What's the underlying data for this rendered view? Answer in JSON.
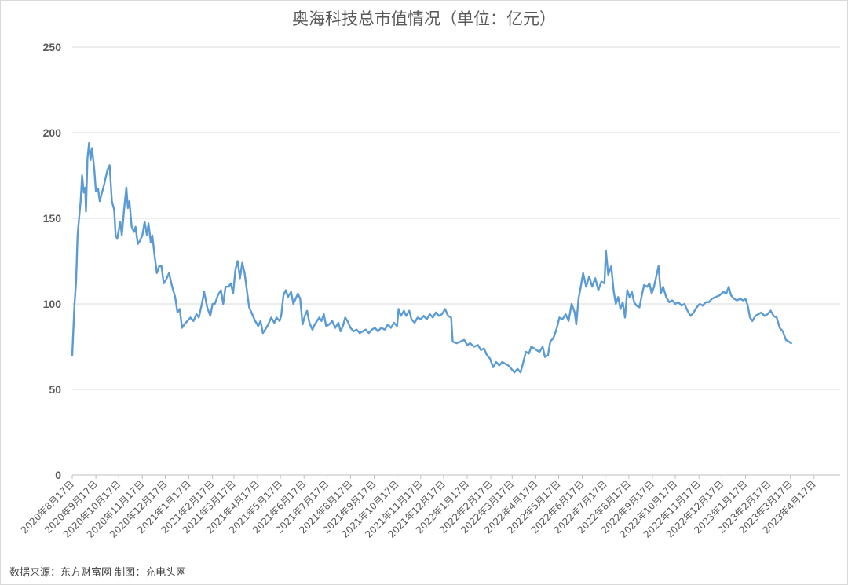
{
  "chart_data": {
    "type": "line",
    "title": "奥海科技总市值情况（单位：亿元）",
    "xlabel": "",
    "ylabel": "",
    "ylim": [
      0,
      250
    ],
    "yticks": [
      0,
      50,
      100,
      150,
      200,
      250
    ],
    "grid": "horizontal",
    "legend": "none",
    "line_color": "#5b9bd5",
    "x_start": "2020年8月17日",
    "categories": [
      "2020年8月17日",
      "2020年9月17日",
      "2020年10月17日",
      "2020年11月17日",
      "2020年12月17日",
      "2021年1月17日",
      "2021年2月17日",
      "2021年3月17日",
      "2021年4月17日",
      "2021年5月17日",
      "2021年6月17日",
      "2021年7月17日",
      "2021年8月17日",
      "2021年9月17日",
      "2021年10月17日",
      "2021年11月17日",
      "2021年12月17日",
      "2022年1月17日",
      "2022年2月17日",
      "2022年3月17日",
      "2022年4月17日",
      "2022年5月17日",
      "2022年6月17日",
      "2022年7月17日",
      "2022年8月17日",
      "2022年9月17日",
      "2022年10月17日",
      "2022年11月17日",
      "2022年12月17日",
      "2023年1月17日",
      "2023年2月17日",
      "2023年3月17日",
      "2023年4月17日"
    ],
    "series": [
      {
        "points": [
          [
            "2020-08-17",
            70
          ],
          [
            "2020-08-20",
            100
          ],
          [
            "2020-08-22",
            113
          ],
          [
            "2020-08-24",
            140
          ],
          [
            "2020-08-26",
            150
          ],
          [
            "2020-08-28",
            160
          ],
          [
            "2020-08-30",
            175
          ],
          [
            "2020-09-01",
            165
          ],
          [
            "2020-09-03",
            168
          ],
          [
            "2020-09-04",
            154
          ],
          [
            "2020-09-06",
            185
          ],
          [
            "2020-09-08",
            194
          ],
          [
            "2020-09-10",
            184
          ],
          [
            "2020-09-12",
            191
          ],
          [
            "2020-09-15",
            178
          ],
          [
            "2020-09-17",
            166
          ],
          [
            "2020-09-20",
            167
          ],
          [
            "2020-09-22",
            160
          ],
          [
            "2020-09-25",
            165
          ],
          [
            "2020-09-28",
            170
          ],
          [
            "2020-10-02",
            178
          ],
          [
            "2020-10-05",
            181
          ],
          [
            "2020-10-08",
            160
          ],
          [
            "2020-10-11",
            155
          ],
          [
            "2020-10-13",
            140
          ],
          [
            "2020-10-15",
            138
          ],
          [
            "2020-10-17",
            143
          ],
          [
            "2020-10-19",
            148
          ],
          [
            "2020-10-21",
            140
          ],
          [
            "2020-10-24",
            155
          ],
          [
            "2020-10-27",
            168
          ],
          [
            "2020-10-29",
            156
          ],
          [
            "2020-10-31",
            160
          ],
          [
            "2020-11-03",
            145
          ],
          [
            "2020-11-06",
            142
          ],
          [
            "2020-11-08",
            145
          ],
          [
            "2020-11-11",
            135
          ],
          [
            "2020-11-14",
            137
          ],
          [
            "2020-11-17",
            140
          ],
          [
            "2020-11-20",
            148
          ],
          [
            "2020-11-23",
            140
          ],
          [
            "2020-11-25",
            147
          ],
          [
            "2020-11-28",
            136
          ],
          [
            "2020-11-30",
            140
          ],
          [
            "2020-12-03",
            128
          ],
          [
            "2020-12-06",
            118
          ],
          [
            "2020-12-09",
            122
          ],
          [
            "2020-12-12",
            122
          ],
          [
            "2020-12-15",
            112
          ],
          [
            "2020-12-18",
            114
          ],
          [
            "2020-12-22",
            118
          ],
          [
            "2020-12-26",
            110
          ],
          [
            "2020-12-30",
            104
          ],
          [
            "2021-01-02",
            95
          ],
          [
            "2021-01-05",
            97
          ],
          [
            "2021-01-08",
            86
          ],
          [
            "2021-01-11",
            88
          ],
          [
            "2021-01-15",
            90
          ],
          [
            "2021-01-19",
            92
          ],
          [
            "2021-01-23",
            90
          ],
          [
            "2021-01-27",
            94
          ],
          [
            "2021-01-30",
            92
          ],
          [
            "2021-02-03",
            100
          ],
          [
            "2021-02-06",
            107
          ],
          [
            "2021-02-10",
            98
          ],
          [
            "2021-02-14",
            93
          ],
          [
            "2021-02-17",
            100
          ],
          [
            "2021-02-20",
            100
          ],
          [
            "2021-02-24",
            105
          ],
          [
            "2021-02-28",
            108
          ],
          [
            "2021-03-03",
            100
          ],
          [
            "2021-03-06",
            110
          ],
          [
            "2021-03-10",
            110
          ],
          [
            "2021-03-13",
            112
          ],
          [
            "2021-03-16",
            106
          ],
          [
            "2021-03-19",
            120
          ],
          [
            "2021-03-22",
            125
          ],
          [
            "2021-03-25",
            115
          ],
          [
            "2021-03-28",
            124
          ],
          [
            "2021-03-31",
            118
          ],
          [
            "2021-04-03",
            108
          ],
          [
            "2021-04-06",
            98
          ],
          [
            "2021-04-10",
            94
          ],
          [
            "2021-04-14",
            90
          ],
          [
            "2021-04-18",
            87
          ],
          [
            "2021-04-21",
            90
          ],
          [
            "2021-04-24",
            83
          ],
          [
            "2021-04-27",
            85
          ],
          [
            "2021-05-01",
            88
          ],
          [
            "2021-05-05",
            92
          ],
          [
            "2021-05-09",
            89
          ],
          [
            "2021-05-12",
            92
          ],
          [
            "2021-05-16",
            90
          ],
          [
            "2021-05-18",
            93
          ],
          [
            "2021-05-21",
            105
          ],
          [
            "2021-05-24",
            108
          ],
          [
            "2021-05-27",
            104
          ],
          [
            "2021-05-31",
            107
          ],
          [
            "2021-06-03",
            100
          ],
          [
            "2021-06-06",
            103
          ],
          [
            "2021-06-09",
            106
          ],
          [
            "2021-06-12",
            103
          ],
          [
            "2021-06-15",
            88
          ],
          [
            "2021-06-18",
            93
          ],
          [
            "2021-06-21",
            96
          ],
          [
            "2021-06-24",
            89
          ],
          [
            "2021-06-28",
            85
          ],
          [
            "2021-07-01",
            88
          ],
          [
            "2021-07-04",
            90
          ],
          [
            "2021-07-07",
            92
          ],
          [
            "2021-07-10",
            90
          ],
          [
            "2021-07-13",
            94
          ],
          [
            "2021-07-16",
            87
          ],
          [
            "2021-07-20",
            88
          ],
          [
            "2021-07-24",
            90
          ],
          [
            "2021-07-28",
            86
          ],
          [
            "2021-08-01",
            89
          ],
          [
            "2021-08-04",
            84
          ],
          [
            "2021-08-07",
            87
          ],
          [
            "2021-08-10",
            92
          ],
          [
            "2021-08-13",
            90
          ],
          [
            "2021-08-17",
            86
          ],
          [
            "2021-08-21",
            84
          ],
          [
            "2021-08-25",
            85
          ],
          [
            "2021-08-29",
            83
          ],
          [
            "2021-09-02",
            84
          ],
          [
            "2021-09-06",
            85
          ],
          [
            "2021-09-10",
            83
          ],
          [
            "2021-09-14",
            85
          ],
          [
            "2021-09-18",
            86
          ],
          [
            "2021-09-22",
            84
          ],
          [
            "2021-09-26",
            86
          ],
          [
            "2021-10-01",
            85
          ],
          [
            "2021-10-05",
            88
          ],
          [
            "2021-10-09",
            86
          ],
          [
            "2021-10-13",
            89
          ],
          [
            "2021-10-17",
            87
          ],
          [
            "2021-10-19",
            97
          ],
          [
            "2021-10-22",
            93
          ],
          [
            "2021-10-26",
            96
          ],
          [
            "2021-10-29",
            93
          ],
          [
            "2021-11-02",
            96
          ],
          [
            "2021-11-05",
            91
          ],
          [
            "2021-11-09",
            89
          ],
          [
            "2021-11-13",
            92
          ],
          [
            "2021-11-17",
            91
          ],
          [
            "2021-11-21",
            93
          ],
          [
            "2021-11-25",
            91
          ],
          [
            "2021-11-29",
            94
          ],
          [
            "2021-12-03",
            92
          ],
          [
            "2021-12-07",
            95
          ],
          [
            "2021-12-11",
            93
          ],
          [
            "2021-12-15",
            94
          ],
          [
            "2021-12-19",
            97
          ],
          [
            "2021-12-23",
            93
          ],
          [
            "2021-12-27",
            92
          ],
          [
            "2021-12-29",
            78
          ],
          [
            "2022-01-03",
            77
          ],
          [
            "2022-01-08",
            78
          ],
          [
            "2022-01-13",
            79
          ],
          [
            "2022-01-17",
            76
          ],
          [
            "2022-01-21",
            77
          ],
          [
            "2022-01-26",
            75
          ],
          [
            "2022-01-31",
            76
          ],
          [
            "2022-02-04",
            73
          ],
          [
            "2022-02-08",
            74
          ],
          [
            "2022-02-12",
            70
          ],
          [
            "2022-02-16",
            68
          ],
          [
            "2022-02-20",
            63
          ],
          [
            "2022-02-24",
            66
          ],
          [
            "2022-02-28",
            64
          ],
          [
            "2022-03-04",
            66
          ],
          [
            "2022-03-08",
            65
          ],
          [
            "2022-03-12",
            64
          ],
          [
            "2022-03-16",
            62
          ],
          [
            "2022-03-20",
            60
          ],
          [
            "2022-03-24",
            62
          ],
          [
            "2022-03-28",
            60
          ],
          [
            "2022-03-31",
            65
          ],
          [
            "2022-04-04",
            72
          ],
          [
            "2022-04-08",
            71
          ],
          [
            "2022-04-11",
            75
          ],
          [
            "2022-04-15",
            74
          ],
          [
            "2022-04-18",
            73
          ],
          [
            "2022-04-22",
            72
          ],
          [
            "2022-04-26",
            75
          ],
          [
            "2022-04-29",
            69
          ],
          [
            "2022-05-03",
            70
          ],
          [
            "2022-05-06",
            78
          ],
          [
            "2022-05-10",
            80
          ],
          [
            "2022-05-14",
            85
          ],
          [
            "2022-05-18",
            92
          ],
          [
            "2022-05-22",
            91
          ],
          [
            "2022-05-26",
            94
          ],
          [
            "2022-05-30",
            90
          ],
          [
            "2022-06-03",
            100
          ],
          [
            "2022-06-07",
            95
          ],
          [
            "2022-06-09",
            88
          ],
          [
            "2022-06-12",
            103
          ],
          [
            "2022-06-15",
            110
          ],
          [
            "2022-06-18",
            118
          ],
          [
            "2022-06-22",
            110
          ],
          [
            "2022-06-26",
            116
          ],
          [
            "2022-06-30",
            110
          ],
          [
            "2022-07-04",
            115
          ],
          [
            "2022-07-08",
            108
          ],
          [
            "2022-07-12",
            113
          ],
          [
            "2022-07-16",
            112
          ],
          [
            "2022-07-18",
            131
          ],
          [
            "2022-07-21",
            117
          ],
          [
            "2022-07-25",
            122
          ],
          [
            "2022-07-28",
            108
          ],
          [
            "2022-07-31",
            100
          ],
          [
            "2022-08-03",
            104
          ],
          [
            "2022-08-06",
            97
          ],
          [
            "2022-08-09",
            101
          ],
          [
            "2022-08-12",
            92
          ],
          [
            "2022-08-15",
            108
          ],
          [
            "2022-08-18",
            104
          ],
          [
            "2022-08-21",
            107
          ],
          [
            "2022-08-24",
            101
          ],
          [
            "2022-08-27",
            99
          ],
          [
            "2022-08-31",
            98
          ],
          [
            "2022-09-03",
            105
          ],
          [
            "2022-09-06",
            111
          ],
          [
            "2022-09-10",
            110
          ],
          [
            "2022-09-13",
            112
          ],
          [
            "2022-09-16",
            106
          ],
          [
            "2022-09-19",
            110
          ],
          [
            "2022-09-22",
            116
          ],
          [
            "2022-09-25",
            122
          ],
          [
            "2022-09-28",
            106
          ],
          [
            "2022-10-01",
            110
          ],
          [
            "2022-10-05",
            104
          ],
          [
            "2022-10-09",
            101
          ],
          [
            "2022-10-13",
            102
          ],
          [
            "2022-10-17",
            100
          ],
          [
            "2022-10-21",
            101
          ],
          [
            "2022-10-25",
            99
          ],
          [
            "2022-10-29",
            100
          ],
          [
            "2022-11-02",
            96
          ],
          [
            "2022-11-06",
            93
          ],
          [
            "2022-11-10",
            95
          ],
          [
            "2022-11-14",
            98
          ],
          [
            "2022-11-18",
            100
          ],
          [
            "2022-11-22",
            99
          ],
          [
            "2022-11-26",
            101
          ],
          [
            "2022-11-30",
            101
          ],
          [
            "2022-12-04",
            103
          ],
          [
            "2022-12-09",
            104
          ],
          [
            "2022-12-14",
            105
          ],
          [
            "2022-12-19",
            107
          ],
          [
            "2022-12-23",
            106
          ],
          [
            "2022-12-26",
            110
          ],
          [
            "2022-12-29",
            105
          ],
          [
            "2023-01-02",
            103
          ],
          [
            "2023-01-06",
            102
          ],
          [
            "2023-01-10",
            103
          ],
          [
            "2023-01-14",
            102
          ],
          [
            "2023-01-17",
            103
          ],
          [
            "2023-01-20",
            99
          ],
          [
            "2023-01-23",
            92
          ],
          [
            "2023-01-26",
            90
          ],
          [
            "2023-01-30",
            93
          ],
          [
            "2023-02-03",
            94
          ],
          [
            "2023-02-07",
            95
          ],
          [
            "2023-02-11",
            93
          ],
          [
            "2023-02-15",
            94
          ],
          [
            "2023-02-19",
            96
          ],
          [
            "2023-02-23",
            93
          ],
          [
            "2023-02-27",
            92
          ],
          [
            "2023-03-03",
            86
          ],
          [
            "2023-03-07",
            84
          ],
          [
            "2023-03-11",
            79
          ],
          [
            "2023-03-15",
            78
          ],
          [
            "2023-03-18",
            77
          ]
        ]
      }
    ]
  },
  "footer": {
    "source": "数据来源：东方财富网   制图：充电头网"
  }
}
